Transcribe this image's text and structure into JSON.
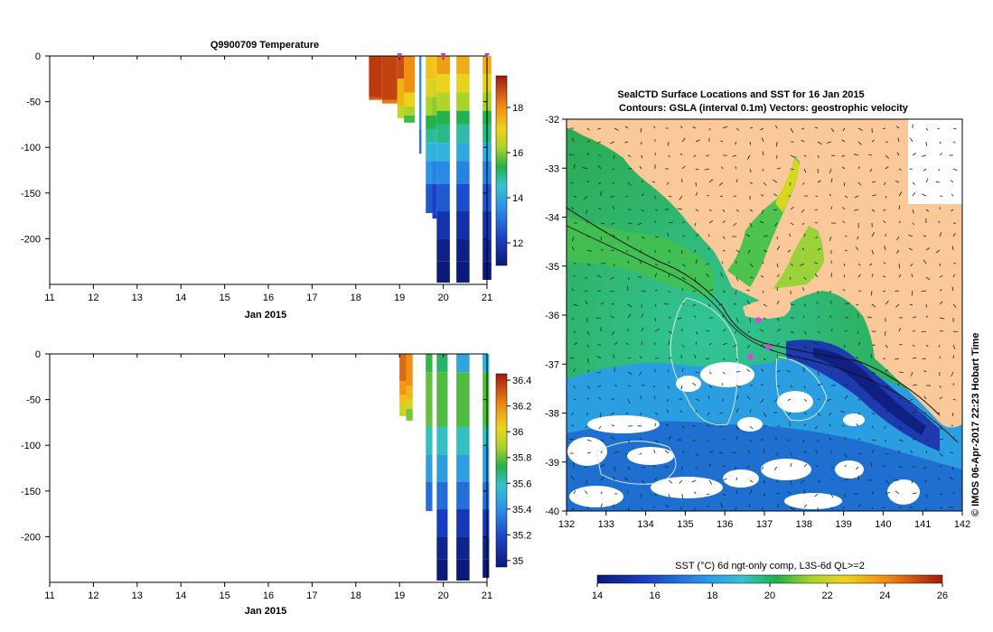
{
  "chart_data": [
    {
      "type": "heatmap",
      "title": "Q9900709  Temperature",
      "xlabel": "Jan 2015",
      "ylabel": "",
      "xlim": [
        11,
        21
      ],
      "ylim": [
        -250,
        0
      ],
      "x_ticks": [
        "11",
        "12",
        "13",
        "14",
        "15",
        "16",
        "17",
        "18",
        "19",
        "20",
        "21"
      ],
      "y_ticks": [
        "0",
        "-50",
        "-100",
        "-150",
        "-200"
      ],
      "colorbar": {
        "min": 11,
        "max": 19.4,
        "ticks": [
          "18",
          "16",
          "14",
          "12"
        ]
      },
      "markers_x": [
        19.0,
        20.0,
        21.0
      ],
      "profiles": [
        {
          "x0": 18.3,
          "x1": 18.6,
          "depth": 48,
          "segs": [
            [
              0,
              45,
              19.0
            ],
            [
              45,
              48,
              18.6
            ]
          ]
        },
        {
          "x0": 18.6,
          "x1": 18.95,
          "depth": 52,
          "segs": [
            [
              0,
              48,
              18.9
            ],
            [
              48,
              52,
              18.3
            ]
          ]
        },
        {
          "x0": 18.95,
          "x1": 19.1,
          "depth": 68,
          "segs": [
            [
              0,
              25,
              18.8
            ],
            [
              25,
              55,
              17.5
            ],
            [
              55,
              68,
              16.5
            ]
          ]
        },
        {
          "x0": 19.1,
          "x1": 19.35,
          "depth": 73,
          "segs": [
            [
              0,
              40,
              18.0
            ],
            [
              40,
              55,
              17.0
            ],
            [
              55,
              65,
              16.2
            ],
            [
              65,
              73,
              15.6
            ]
          ]
        },
        {
          "x0": 19.45,
          "x1": 19.5,
          "depth": 107,
          "segs": [
            [
              0,
              80,
              13.5
            ],
            [
              80,
              107,
              13.0
            ]
          ]
        },
        {
          "x0": 19.6,
          "x1": 19.75,
          "depth": 172,
          "segs": [
            [
              0,
              25,
              17.3
            ],
            [
              25,
              45,
              16.8
            ],
            [
              45,
              65,
              16.2
            ],
            [
              65,
              80,
              15.4
            ],
            [
              80,
              95,
              14.9
            ],
            [
              95,
              115,
              14.3
            ],
            [
              115,
              140,
              13.6
            ],
            [
              140,
              172,
              12.6
            ]
          ]
        },
        {
          "x0": 19.75,
          "x1": 19.85,
          "depth": 178,
          "segs": [
            [
              0,
              25,
              17.2
            ],
            [
              25,
              45,
              16.7
            ],
            [
              45,
              65,
              16.0
            ],
            [
              65,
              80,
              15.3
            ],
            [
              80,
              95,
              14.8
            ],
            [
              95,
              115,
              14.1
            ],
            [
              115,
              140,
              13.3
            ],
            [
              140,
              178,
              12.2
            ]
          ]
        },
        {
          "x0": 19.85,
          "x1": 20.15,
          "depth": 248,
          "segs": [
            [
              0,
              20,
              17.8
            ],
            [
              20,
              40,
              17.0
            ],
            [
              40,
              60,
              16.3
            ],
            [
              60,
              75,
              15.4
            ],
            [
              75,
              95,
              15.0
            ],
            [
              95,
              115,
              14.2
            ],
            [
              115,
              140,
              13.4
            ],
            [
              140,
              170,
              12.6
            ],
            [
              170,
              200,
              11.8
            ],
            [
              200,
              225,
              11.2
            ],
            [
              225,
              248,
              10.8
            ]
          ]
        },
        {
          "x0": 20.3,
          "x1": 20.6,
          "depth": 248,
          "segs": [
            [
              0,
              20,
              17.6
            ],
            [
              20,
              40,
              16.9
            ],
            [
              40,
              60,
              16.2
            ],
            [
              60,
              75,
              15.3
            ],
            [
              75,
              95,
              14.8
            ],
            [
              95,
              115,
              14.0
            ],
            [
              115,
              140,
              13.3
            ],
            [
              140,
              170,
              12.4
            ],
            [
              170,
              200,
              11.7
            ],
            [
              200,
              225,
              11.2
            ],
            [
              225,
              248,
              11.0
            ]
          ]
        },
        {
          "x0": 20.9,
          "x1": 21.1,
          "depth": 245,
          "segs": [
            [
              0,
              20,
              17.6
            ],
            [
              20,
              40,
              16.9
            ],
            [
              40,
              60,
              16.2
            ],
            [
              60,
              75,
              15.4
            ],
            [
              75,
              95,
              15.0
            ],
            [
              95,
              115,
              14.1
            ],
            [
              115,
              140,
              13.3
            ],
            [
              140,
              170,
              12.5
            ],
            [
              170,
              200,
              11.8
            ],
            [
              200,
              225,
              11.3
            ],
            [
              225,
              245,
              11.0
            ]
          ]
        }
      ]
    },
    {
      "type": "heatmap",
      "title": "",
      "xlabel": "Jan 2015",
      "xlim": [
        11,
        21
      ],
      "ylim": [
        -250,
        0
      ],
      "x_ticks": [
        "11",
        "12",
        "13",
        "14",
        "15",
        "16",
        "17",
        "18",
        "19",
        "20",
        "21"
      ],
      "y_ticks": [
        "0",
        "-50",
        "-100",
        "-150",
        "-200"
      ],
      "colorbar": {
        "min": 34.95,
        "max": 36.45,
        "ticks": [
          "36.4",
          "36.2",
          "36",
          "35.8",
          "35.6",
          "35.4",
          "35.2",
          "35"
        ]
      },
      "profiles": [
        {
          "x0": 19.0,
          "x1": 19.15,
          "depth": 68,
          "segs": [
            [
              0,
              30,
              36.28
            ],
            [
              30,
              45,
              36.18
            ],
            [
              45,
              55,
              36.08
            ],
            [
              55,
              68,
              35.95
            ]
          ]
        },
        {
          "x0": 19.15,
          "x1": 19.3,
          "depth": 73,
          "segs": [
            [
              0,
              35,
              36.2
            ],
            [
              35,
              50,
              36.1
            ],
            [
              50,
              60,
              35.98
            ],
            [
              60,
              73,
              35.82
            ]
          ]
        },
        {
          "x0": 19.6,
          "x1": 19.75,
          "depth": 172,
          "segs": [
            [
              0,
              20,
              35.75
            ],
            [
              20,
              80,
              35.8
            ],
            [
              80,
              110,
              35.6
            ],
            [
              110,
              140,
              35.45
            ],
            [
              140,
              172,
              35.3
            ]
          ]
        },
        {
          "x0": 19.85,
          "x1": 20.1,
          "depth": 248,
          "segs": [
            [
              0,
              20,
              35.7
            ],
            [
              20,
              80,
              35.78
            ],
            [
              80,
              110,
              35.6
            ],
            [
              110,
              140,
              35.45
            ],
            [
              140,
              170,
              35.3
            ],
            [
              170,
              200,
              35.15
            ],
            [
              200,
              225,
              35.0
            ],
            [
              225,
              248,
              34.95
            ]
          ]
        },
        {
          "x0": 20.3,
          "x1": 20.6,
          "depth": 248,
          "segs": [
            [
              0,
              20,
              35.48
            ],
            [
              20,
              80,
              35.78
            ],
            [
              80,
              110,
              35.6
            ],
            [
              110,
              140,
              35.45
            ],
            [
              140,
              170,
              35.3
            ],
            [
              170,
              200,
              35.12
            ],
            [
              200,
              225,
              35.0
            ],
            [
              225,
              248,
              34.95
            ]
          ]
        },
        {
          "x0": 20.9,
          "x1": 21.05,
          "depth": 245,
          "segs": [
            [
              0,
              20,
              35.5
            ],
            [
              20,
              80,
              35.78
            ],
            [
              80,
              100,
              35.6
            ],
            [
              100,
              140,
              35.45
            ],
            [
              140,
              170,
              35.3
            ],
            [
              170,
              200,
              35.12
            ],
            [
              200,
              225,
              35.0
            ],
            [
              225,
              245,
              34.95
            ]
          ]
        }
      ]
    },
    {
      "type": "heatmap",
      "title": "SealCTD Surface Locations and SST for 16 Jan 2015",
      "subtitle": "Contours: GSLA (interval 0.1m) Vectors: geostrophic velocity",
      "xlabel": "",
      "ylabel": "",
      "xlim": [
        132,
        142
      ],
      "ylim": [
        -40,
        -32
      ],
      "x_ticks": [
        "132",
        "133",
        "134",
        "135",
        "136",
        "137",
        "138",
        "139",
        "140",
        "141",
        "142"
      ],
      "y_ticks": [
        "-32",
        "-33",
        "-34",
        "-35",
        "-36",
        "-37",
        "-38",
        "-39",
        "-40"
      ],
      "colorbar": {
        "min": 14,
        "max": 26,
        "ticks": [
          "14",
          "16",
          "18",
          "20",
          "22",
          "24",
          "26"
        ],
        "label": "SST (°C) 6d ngt-only comp, L3S-6d QL>=2"
      },
      "seal_locations": [
        [
          136.85,
          -36.1
        ],
        [
          137.1,
          -36.65
        ],
        [
          136.65,
          -36.85
        ]
      ],
      "land_color": "#fbc999",
      "side_label": "© IMOS 06-Apr-2017 22:23 Hobart Time"
    }
  ]
}
